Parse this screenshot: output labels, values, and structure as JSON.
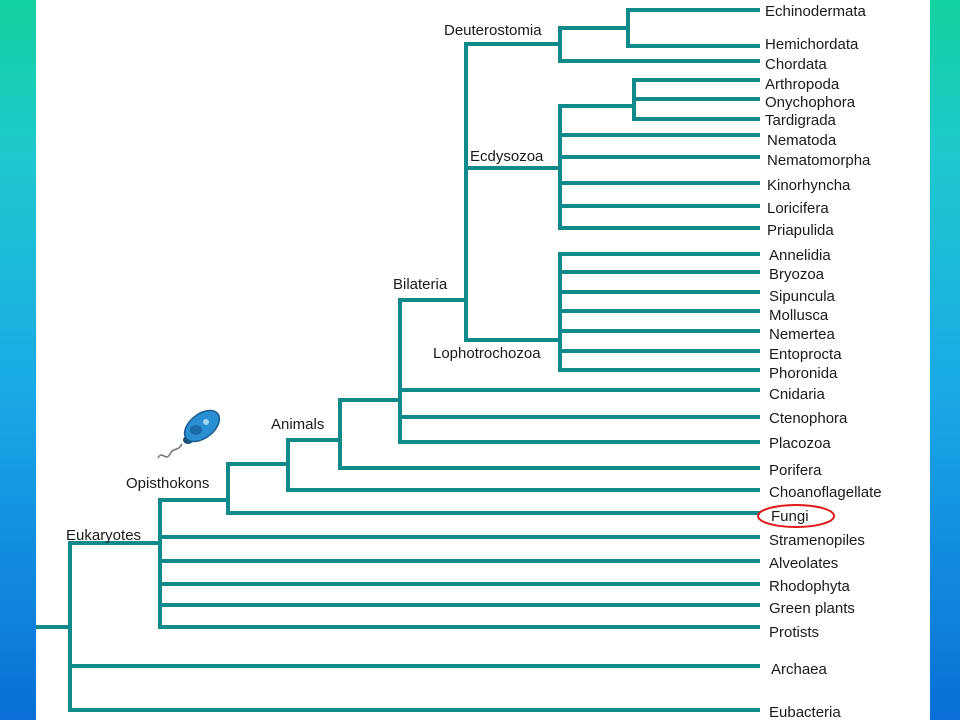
{
  "tree": {
    "clade_labels": {
      "deuterostomia": "Deuterostomia",
      "ecdysozoa": "Ecdysozoa",
      "bilateria": "Bilateria",
      "lophotrochozoa": "Lophotrochozoa",
      "animals": "Animals",
      "opisthokons": "Opisthokons",
      "eukaryotes": "Eukaryotes"
    },
    "leaves": [
      "Echinodermata",
      "Hemichordata",
      "Chordata",
      "Arthropoda",
      "Onychophora",
      "Tardigrada",
      "Nematoda",
      "Nematomorpha",
      "Kinorhyncha",
      "Loricifera",
      "Priapulida",
      "Annelidia",
      "Bryozoa",
      "Sipuncula",
      "Mollusca",
      "Nemertea",
      "Entoprocta",
      "Phoronida",
      "Cnidaria",
      "Ctenophora",
      "Placozoa",
      "Porifera",
      "Choanoflagellate",
      "Fungi",
      "Stramenopiles",
      "Alveolates",
      "Rhodophyta",
      "Green plants",
      "Protists",
      "Archaea",
      "Eubacteria"
    ],
    "highlighted_leaf": "Fungi",
    "branch_color": "#108a8a",
    "highlight_color": "#e01818",
    "icon": "choanoflagellate-cell-icon"
  }
}
